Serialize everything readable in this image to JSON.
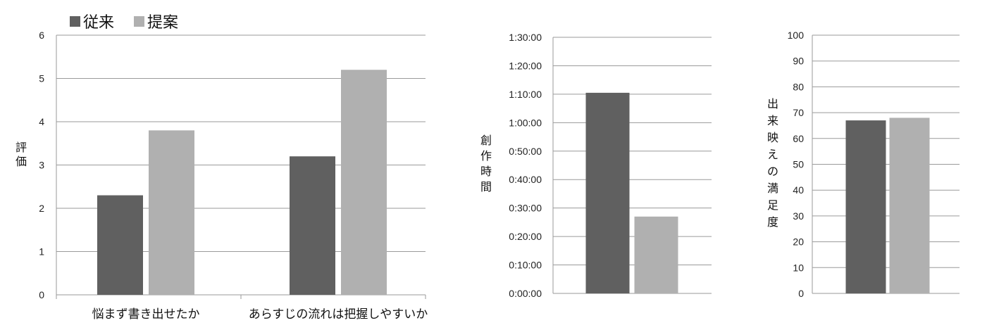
{
  "legend": {
    "items": [
      {
        "name": "従来",
        "color": "#606060"
      },
      {
        "name": "提案",
        "color": "#b0b0b0"
      }
    ]
  },
  "chart_data": [
    {
      "type": "bar",
      "ylabel": "評価",
      "ylim": [
        0,
        6
      ],
      "yticks": [
        "0",
        "1",
        "2",
        "3",
        "4",
        "5",
        "6"
      ],
      "categories": [
        "悩まず書き出せたか",
        "あらすじの流れは把握しやすいか"
      ],
      "series": [
        {
          "name": "従来",
          "color": "#606060",
          "values": [
            2.3,
            3.2
          ]
        },
        {
          "name": "提案",
          "color": "#b0b0b0",
          "values": [
            3.8,
            5.2
          ]
        }
      ],
      "grid": true,
      "legend_position": "top-left"
    },
    {
      "type": "bar",
      "ylabel": "創作時間",
      "ylim": [
        0,
        90
      ],
      "yticks": [
        "0:00:00",
        "0:10:00",
        "0:20:00",
        "0:30:00",
        "0:40:00",
        "0:50:00",
        "1:00:00",
        "1:10:00",
        "1:20:00",
        "1:30:00"
      ],
      "categories": [
        ""
      ],
      "series": [
        {
          "name": "従来",
          "color": "#606060",
          "values": [
            70.5
          ]
        },
        {
          "name": "提案",
          "color": "#b0b0b0",
          "values": [
            27
          ]
        }
      ],
      "grid": true
    },
    {
      "type": "bar",
      "ylabel": "出来映えの満足度",
      "ylim": [
        0,
        100
      ],
      "yticks": [
        "0",
        "10",
        "20",
        "30",
        "40",
        "50",
        "60",
        "70",
        "80",
        "90",
        "100"
      ],
      "categories": [
        ""
      ],
      "series": [
        {
          "name": "従来",
          "color": "#606060",
          "values": [
            67
          ]
        },
        {
          "name": "提案",
          "color": "#b0b0b0",
          "values": [
            68
          ]
        }
      ],
      "grid": true
    }
  ]
}
